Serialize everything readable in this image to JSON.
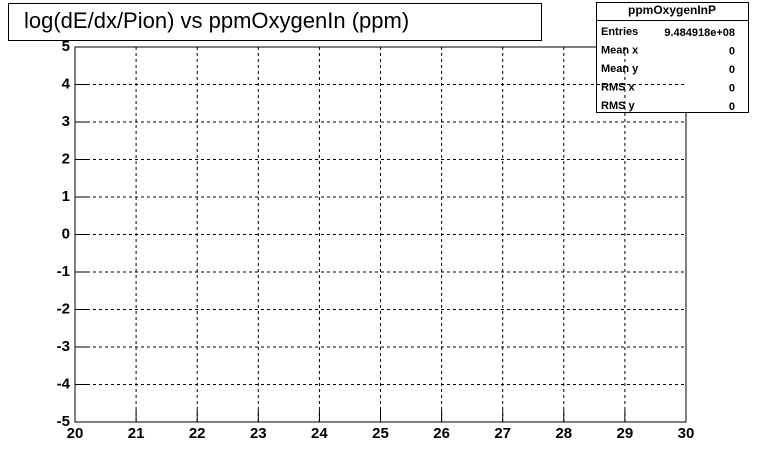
{
  "chart_data": {
    "type": "scatter",
    "title": "log(dE/dx/Pion) vs ppmOxygenIn (ppm)",
    "xlim": [
      20,
      30
    ],
    "xticks": [
      20,
      21,
      22,
      23,
      24,
      25,
      26,
      27,
      28,
      29,
      30
    ],
    "ylim": [
      -5,
      5
    ],
    "yticks": [
      -5,
      -4,
      -3,
      -2,
      -1,
      0,
      1,
      2,
      3,
      4,
      5
    ],
    "grid": true,
    "stats": {
      "title": "ppmOxygenInP",
      "rows": [
        {
          "label": "Entries",
          "value": "9.484918e+08"
        },
        {
          "label": "Mean x",
          "value": "0"
        },
        {
          "label": "Mean y",
          "value": "0"
        },
        {
          "label": "RMS x",
          "value": "0"
        },
        {
          "label": "RMS y",
          "value": "0"
        }
      ]
    }
  }
}
